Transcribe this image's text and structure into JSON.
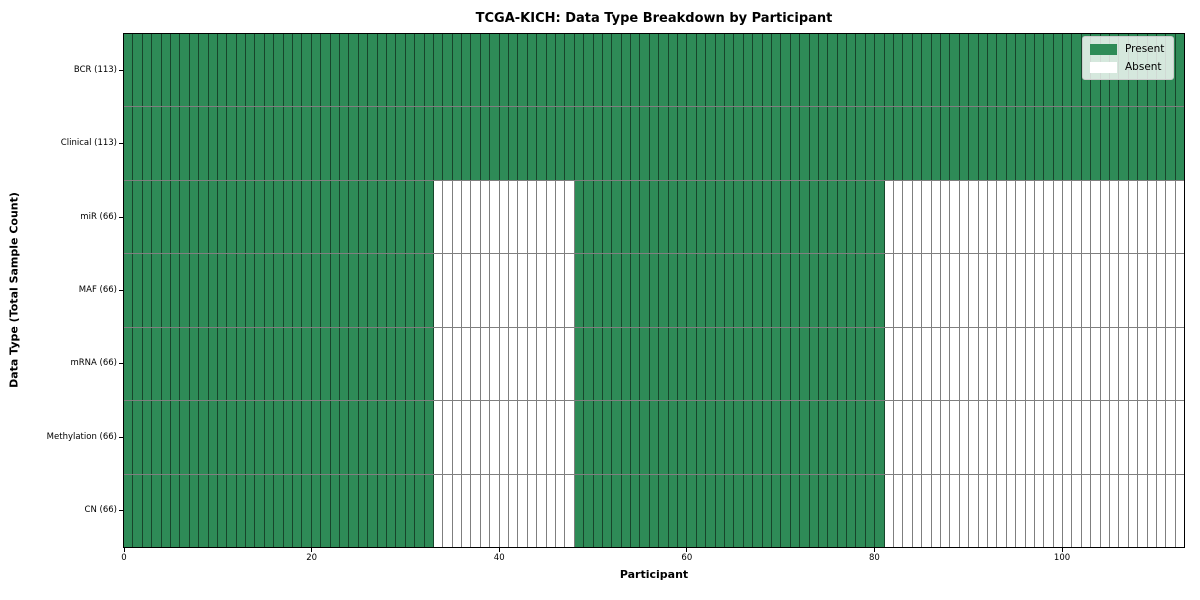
{
  "figure": {
    "title": "TCGA-KICH: Data Type Breakdown by Participant",
    "xlabel": "Participant",
    "ylabel": "Data Type (Total Sample Count)"
  },
  "legend": {
    "items": [
      {
        "label": "Present",
        "color": "#2e8b57"
      },
      {
        "label": "Absent",
        "color": "#ffffff"
      }
    ],
    "position": "upper right"
  },
  "chart_data": {
    "type": "heatmap",
    "title": "TCGA-KICH: Data Type Breakdown by Participant",
    "xlabel": "Participant",
    "ylabel": "Data Type (Total Sample Count)",
    "xlim": [
      0,
      113
    ],
    "x_ticks": [
      0,
      20,
      40,
      60,
      80,
      100
    ],
    "n_participants": 113,
    "grid": "cell-borders",
    "legend_position": "upper right",
    "colors": {
      "present": "#2e8b57",
      "absent": "#ffffff",
      "cell_edge": "rgba(0,0,0,0.5)"
    },
    "rows": [
      {
        "label": "BCR (113)",
        "data_type": "BCR",
        "total_sample_count": 113,
        "present_ranges": [
          [
            0,
            113
          ]
        ]
      },
      {
        "label": "Clinical (113)",
        "data_type": "Clinical",
        "total_sample_count": 113,
        "present_ranges": [
          [
            0,
            113
          ]
        ]
      },
      {
        "label": "miR (66)",
        "data_type": "miR",
        "total_sample_count": 66,
        "present_ranges": [
          [
            0,
            33
          ],
          [
            48,
            81
          ]
        ]
      },
      {
        "label": "MAF (66)",
        "data_type": "MAF",
        "total_sample_count": 66,
        "present_ranges": [
          [
            0,
            33
          ],
          [
            48,
            81
          ]
        ]
      },
      {
        "label": "mRNA (66)",
        "data_type": "mRNA",
        "total_sample_count": 66,
        "present_ranges": [
          [
            0,
            33
          ],
          [
            48,
            81
          ]
        ]
      },
      {
        "label": "Methylation (66)",
        "data_type": "Methylation",
        "total_sample_count": 66,
        "present_ranges": [
          [
            0,
            33
          ],
          [
            48,
            81
          ]
        ]
      },
      {
        "label": "CN (66)",
        "data_type": "CN",
        "total_sample_count": 66,
        "present_ranges": [
          [
            0,
            33
          ],
          [
            48,
            81
          ]
        ]
      }
    ]
  }
}
